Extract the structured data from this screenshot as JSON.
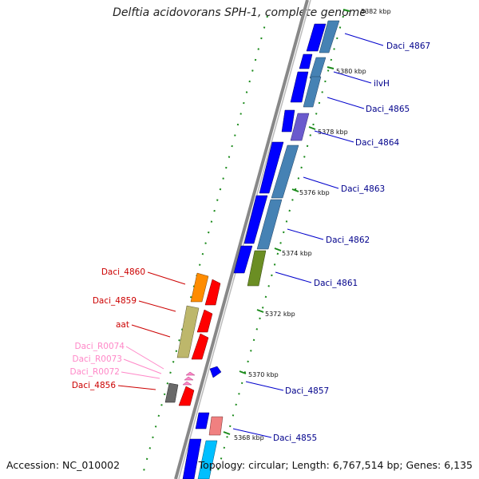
{
  "header": {
    "title": "Delftia acidovorans SPH-1, complete genome"
  },
  "footer": {
    "accession": "Accession: NC_010002",
    "summary": "Topology: circular; Length: 6,767,514 bp; Genes: 6,135"
  },
  "colors": {
    "forward_label": "#00008b",
    "reverse_label": "#cc0000",
    "rna_label": "#ff88c8",
    "backbone": "#888888",
    "tick": "#1a8a1a"
  },
  "ruler": [
    {
      "label": "5382 kbp"
    },
    {
      "label": "5380 kbp"
    },
    {
      "label": "5378 kbp"
    },
    {
      "label": "5376 kbp"
    },
    {
      "label": "5374 kbp"
    },
    {
      "label": "5372 kbp"
    },
    {
      "label": "5370 kbp"
    },
    {
      "label": "5368 kbp"
    }
  ],
  "forward_genes": [
    {
      "name": "Daci_4867",
      "color": "#0000ff"
    },
    {
      "name": "ilvH",
      "color": "#4682b4"
    },
    {
      "name": "Daci_4865",
      "color": "#0000ff"
    },
    {
      "name": "Daci_4864",
      "color": "#6a5acd"
    },
    {
      "name": "Daci_4863",
      "color": "#4682b4"
    },
    {
      "name": "Daci_4862",
      "color": "#4682b4"
    },
    {
      "name": "Daci_4861",
      "color": "#6b8e23"
    },
    {
      "name": "Daci_4857",
      "color": "#0000ff"
    },
    {
      "name": "Daci_4855",
      "color": "#f08080"
    }
  ],
  "reverse_genes": [
    {
      "name": "Daci_4860",
      "color": "#ff8c00"
    },
    {
      "name": "Daci_4859",
      "color": "#bdb76b"
    },
    {
      "name": "aat",
      "color": "#ff0000"
    },
    {
      "name": "Daci_R0074",
      "color": "#ff88c8"
    },
    {
      "name": "Daci_R0073",
      "color": "#ff88c8"
    },
    {
      "name": "Daci_R0072",
      "color": "#ff88c8"
    },
    {
      "name": "Daci_4856",
      "color": "#696969"
    }
  ]
}
